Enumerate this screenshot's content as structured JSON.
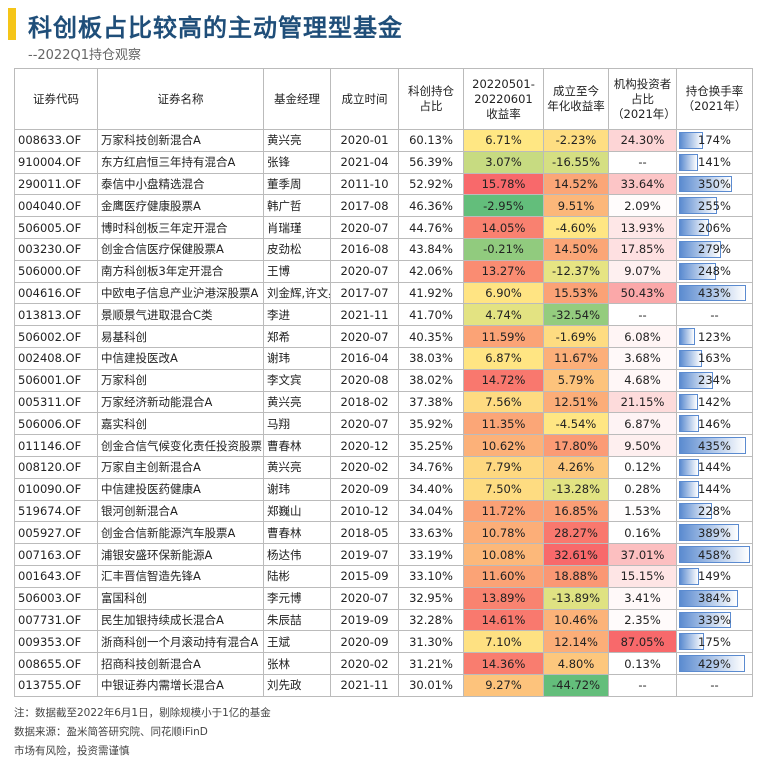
{
  "header": {
    "title": "科创板占比较高的主动管理型基金",
    "subtitle": "--2022Q1持仓观察"
  },
  "table": {
    "header": [
      [
        "证券代码"
      ],
      [
        "证券名称"
      ],
      [
        "基金经理"
      ],
      [
        "成立时间"
      ],
      [
        "科创持仓",
        "占比"
      ],
      [
        "20220501-",
        "20220601",
        "收益率"
      ],
      [
        "成立至今",
        "年化收益率"
      ],
      [
        "机构投资者",
        "占比",
        "（2021年）"
      ],
      [
        "持仓换手率",
        "（2021年）"
      ]
    ],
    "rows": [
      [
        "008633.OF",
        "万家科技创新混合A",
        "黄兴亮",
        "2020-01",
        "60.13%",
        "6.71%",
        "-2.23%",
        "24.30%",
        "174%"
      ],
      [
        "910004.OF",
        "东方红启恒三年持有混合A",
        "张锋",
        "2021-04",
        "56.39%",
        "3.07%",
        "-16.55%",
        "--",
        "141%"
      ],
      [
        "290011.OF",
        "泰信中小盘精选混合",
        "董季周",
        "2011-10",
        "52.92%",
        "15.78%",
        "14.52%",
        "33.64%",
        "350%"
      ],
      [
        "004040.OF",
        "金鹰医疗健康股票A",
        "韩广哲",
        "2017-08",
        "46.36%",
        "-2.95%",
        "9.51%",
        "2.09%",
        "255%"
      ],
      [
        "506005.OF",
        "博时科创板三年定开混合",
        "肖瑞瑾",
        "2020-07",
        "44.76%",
        "14.05%",
        "-4.60%",
        "13.93%",
        "206%"
      ],
      [
        "003230.OF",
        "创金合信医疗保健股票A",
        "皮劲松",
        "2016-08",
        "43.84%",
        "-0.21%",
        "14.50%",
        "17.85%",
        "279%"
      ],
      [
        "506000.OF",
        "南方科创板3年定开混合",
        "王博",
        "2020-07",
        "42.06%",
        "13.27%",
        "-12.37%",
        "9.07%",
        "248%"
      ],
      [
        "004616.OF",
        "中欧电子信息产业沪港深股票A",
        "刘金辉,许文星",
        "2017-07",
        "41.92%",
        "6.90%",
        "15.53%",
        "50.43%",
        "433%"
      ],
      [
        "013813.OF",
        "景顺景气进取混合C类",
        "李进",
        "2021-11",
        "41.70%",
        "4.74%",
        "-32.54%",
        "--",
        "--"
      ],
      [
        "506002.OF",
        "易基科创",
        "郑希",
        "2020-07",
        "40.35%",
        "11.59%",
        "-1.69%",
        "6.08%",
        "123%"
      ],
      [
        "002408.OF",
        "中信建投医改A",
        "谢玮",
        "2016-04",
        "38.03%",
        "6.87%",
        "11.67%",
        "3.68%",
        "163%"
      ],
      [
        "506001.OF",
        "万家科创",
        "李文宾",
        "2020-08",
        "38.02%",
        "14.72%",
        "5.79%",
        "4.68%",
        "234%"
      ],
      [
        "005311.OF",
        "万家经济新动能混合A",
        "黄兴亮",
        "2018-02",
        "37.38%",
        "7.56%",
        "12.51%",
        "21.15%",
        "142%"
      ],
      [
        "506006.OF",
        "嘉实科创",
        "马翔",
        "2020-07",
        "35.92%",
        "11.35%",
        "-4.54%",
        "6.87%",
        "146%"
      ],
      [
        "011146.OF",
        "创金合信气候变化责任投资股票",
        "曹春林",
        "2020-12",
        "35.25%",
        "10.62%",
        "17.80%",
        "9.50%",
        "435%"
      ],
      [
        "008120.OF",
        "万家自主创新混合A",
        "黄兴亮",
        "2020-02",
        "34.76%",
        "7.79%",
        "4.26%",
        "0.12%",
        "144%"
      ],
      [
        "010090.OF",
        "中信建投医药健康A",
        "谢玮",
        "2020-09",
        "34.40%",
        "7.50%",
        "-13.28%",
        "0.28%",
        "144%"
      ],
      [
        "519674.OF",
        "银河创新混合A",
        "郑巍山",
        "2010-12",
        "34.04%",
        "11.72%",
        "16.85%",
        "1.53%",
        "228%"
      ],
      [
        "005927.OF",
        "创金合信新能源汽车股票A",
        "曹春林",
        "2018-05",
        "33.63%",
        "10.78%",
        "28.27%",
        "0.16%",
        "389%"
      ],
      [
        "007163.OF",
        "浦银安盛环保新能源A",
        "杨达伟",
        "2019-07",
        "33.19%",
        "10.08%",
        "32.61%",
        "37.01%",
        "458%"
      ],
      [
        "001643.OF",
        "汇丰晋信智造先锋A",
        "陆彬",
        "2015-09",
        "33.10%",
        "11.60%",
        "18.88%",
        "15.15%",
        "149%"
      ],
      [
        "506003.OF",
        "富国科创",
        "李元博",
        "2020-07",
        "32.95%",
        "13.89%",
        "-13.89%",
        "3.41%",
        "384%"
      ],
      [
        "007731.OF",
        "民生加银持续成长混合A",
        "朱辰喆",
        "2019-09",
        "32.28%",
        "14.61%",
        "10.46%",
        "2.35%",
        "339%"
      ],
      [
        "009353.OF",
        "浙商科创一个月滚动持有混合A",
        "王斌",
        "2020-09",
        "31.30%",
        "7.10%",
        "12.14%",
        "87.05%",
        "175%"
      ],
      [
        "008655.OF",
        "招商科技创新混合A",
        "张林",
        "2020-02",
        "31.21%",
        "14.36%",
        "4.80%",
        "0.13%",
        "429%"
      ],
      [
        "013755.OF",
        "中银证券内需增长混合A",
        "刘先政",
        "2021-11",
        "30.01%",
        "9.27%",
        "-44.72%",
        "--",
        "--"
      ]
    ]
  },
  "footer": [
    "注：数据截至2022年6月1日，剔除规模小于1亿的基金",
    "数据来源：盈米简答研究院、同花顺iFinD",
    "市场有风险，投资需谨慎"
  ]
}
